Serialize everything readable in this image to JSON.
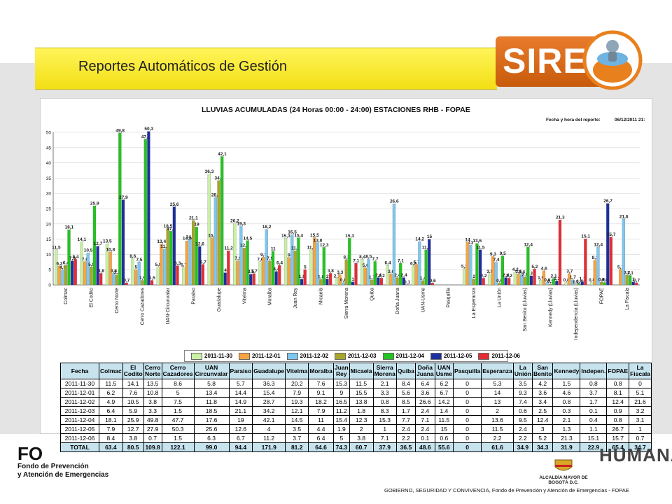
{
  "header": {
    "title": "Reportes Automáticos de Gestión",
    "brand": "SIRE"
  },
  "report": {
    "title": "LLUVIAS ACUMULADAS (24 Horas 00:00 - 24:00) ESTACIONES RHB - FOPAE",
    "date_label": "Fecha y hora del reporte:",
    "date_value": "06/12/2011 21:"
  },
  "chart_data": {
    "type": "bar",
    "ylim": [
      0,
      50
    ],
    "yticks": [
      0,
      5,
      10,
      15,
      20,
      25,
      30,
      35,
      40,
      45,
      50
    ],
    "grid": true,
    "legend_position": "bottom",
    "categories": [
      "Colmac",
      "El Codito",
      "Cerro Norte",
      "Cerro Cazadores",
      "UAN-Circunvalar",
      "Paraiso",
      "Guadalupe",
      "Vitelma",
      "Moralba",
      "Juan Rey",
      "Micaela",
      "Sierra Morena",
      "Quiba",
      "Doña Juana",
      "UAN-Usme",
      "Pasquilla",
      "La Esperanza",
      "La Unión",
      "San Benito (Lluvias)",
      "Kennedy (Lluvias)",
      "Independencia (Lluvias)",
      "FOPAE",
      "La Fiscala"
    ],
    "series": [
      {
        "name": "2011-11-30",
        "color": "#c9f0a4",
        "values": [
          11.5,
          14.1,
          13.5,
          8.6,
          5.8,
          5.7,
          36.3,
          20.2,
          7.6,
          15.3,
          11.5,
          2.1,
          8.4,
          6.4,
          6.2,
          0,
          5.3,
          3.5,
          4.2,
          1.5,
          0.8,
          0.8,
          0
        ]
      },
      {
        "name": "2011-12-01",
        "color": "#f7a440",
        "values": [
          6.2,
          7.6,
          10.8,
          5,
          13.4,
          14.4,
          15.4,
          7.9,
          9.1,
          9,
          15.5,
          3.3,
          5.6,
          3.6,
          6.7,
          0,
          14,
          9.3,
          3.6,
          4.6,
          3.7,
          8.1,
          5.1
        ]
      },
      {
        "name": "2011-12-02",
        "color": "#7ec7ef",
        "values": [
          4.9,
          10.5,
          3.8,
          7.5,
          11.8,
          14.9,
          28.7,
          19.3,
          18.2,
          16.5,
          13.8,
          0.8,
          8.5,
          26.6,
          14.2,
          0,
          13,
          7.4,
          3.4,
          0.8,
          1.7,
          12.4,
          21.6
        ]
      },
      {
        "name": "2011-12-03",
        "color": "#a7a629",
        "values": [
          6.4,
          5.9,
          3.3,
          1.5,
          18.5,
          21.1,
          34.2,
          12.1,
          7.9,
          11.2,
          1.8,
          8.3,
          1.7,
          2.4,
          1.4,
          0,
          2,
          0.6,
          2.5,
          0.3,
          0.1,
          0.9,
          3.2
        ]
      },
      {
        "name": "2011-12-04",
        "color": "#22c51f",
        "values": [
          18.1,
          25.9,
          49.8,
          47.7,
          17.6,
          19,
          42.1,
          14.5,
          11,
          15.4,
          12.3,
          15.3,
          7.7,
          7.1,
          11.5,
          0,
          13.6,
          9.5,
          12.4,
          2.1,
          0.4,
          0.8,
          3.1
        ]
      },
      {
        "name": "2011-12-05",
        "color": "#1c2fa0",
        "values": [
          7.9,
          12.7,
          27.9,
          50.3,
          25.6,
          12.6,
          4,
          3.5,
          4.4,
          1.9,
          2,
          1,
          2.4,
          2.4,
          15,
          0,
          11.5,
          2.4,
          3,
          1.3,
          1.1,
          26.7,
          1
        ]
      },
      {
        "name": "2011-12-06",
        "color": "#e52c35",
        "values": [
          8.4,
          3.8,
          0.7,
          1.5,
          6.3,
          6.7,
          11.2,
          3.7,
          6.4,
          5,
          3.8,
          7.1,
          2.2,
          0.1,
          0.6,
          0,
          2.2,
          2.2,
          5.2,
          21.3,
          15.1,
          15.7,
          0.7
        ]
      }
    ]
  },
  "table": {
    "headers": [
      "Fecha",
      "Colmac",
      "El Codito",
      "Cerro Norte",
      "Cerro Cazadores",
      "UAN Circunvalar",
      "Paraiso",
      "Guadalupe",
      "Vitelma",
      "Moralba",
      "Juan Rey",
      "Micaela",
      "Sierra Morena",
      "Quiba",
      "Doña Juana",
      "UAN Usme",
      "Pasquilla",
      "Esperanza",
      "La Unión",
      "San Benito",
      "Kennedy",
      "Indepen.",
      "FOPAE",
      "La Fiscala"
    ],
    "rows": [
      [
        "2011-11-30",
        "11.5",
        "14.1",
        "13.5",
        "8.6",
        "5.8",
        "5.7",
        "36.3",
        "20.2",
        "7.6",
        "15.3",
        "11.5",
        "2.1",
        "8.4",
        "6.4",
        "6.2",
        "0",
        "5.3",
        "3.5",
        "4.2",
        "1.5",
        "0.8",
        "0.8",
        "0"
      ],
      [
        "2011-12-01",
        "6.2",
        "7.6",
        "10.8",
        "5",
        "13.4",
        "14.4",
        "15.4",
        "7.9",
        "9.1",
        "9",
        "15.5",
        "3.3",
        "5.6",
        "3.6",
        "6.7",
        "0",
        "14",
        "9.3",
        "3.6",
        "4.6",
        "3.7",
        "8.1",
        "5.1"
      ],
      [
        "2011-12-02",
        "4.9",
        "10.5",
        "3.8",
        "7.5",
        "11.8",
        "14.9",
        "28.7",
        "19.3",
        "18.2",
        "16.5",
        "13.8",
        "0.8",
        "8.5",
        "26.6",
        "14.2",
        "0",
        "13",
        "7.4",
        "3.4",
        "0.8",
        "1.7",
        "12.4",
        "21.6"
      ],
      [
        "2011-12-03",
        "6.4",
        "5.9",
        "3.3",
        "1.5",
        "18.5",
        "21.1",
        "34.2",
        "12.1",
        "7.9",
        "11.2",
        "1.8",
        "8.3",
        "1.7",
        "2.4",
        "1.4",
        "0",
        "2",
        "0.6",
        "2.5",
        "0.3",
        "0.1",
        "0.9",
        "3.2"
      ],
      [
        "2011-12-04",
        "18.1",
        "25.9",
        "49.8",
        "47.7",
        "17.6",
        "19",
        "42.1",
        "14.5",
        "11",
        "15.4",
        "12.3",
        "15.3",
        "7.7",
        "7.1",
        "11.5",
        "0",
        "13.6",
        "9.5",
        "12.4",
        "2.1",
        "0.4",
        "0.8",
        "3.1"
      ],
      [
        "2011-12-05",
        "7.9",
        "12.7",
        "27.9",
        "50.3",
        "25.6",
        "12.6",
        "4",
        "3.5",
        "4.4",
        "1.9",
        "2",
        "1",
        "2.4",
        "2.4",
        "15",
        "0",
        "11.5",
        "2.4",
        "3",
        "1.3",
        "1.1",
        "26.7",
        "1"
      ],
      [
        "2011-12-06",
        "8.4",
        "3.8",
        "0.7",
        "1.5",
        "6.3",
        "6.7",
        "11.2",
        "3.7",
        "6.4",
        "5",
        "3.8",
        "7.1",
        "2.2",
        "0.1",
        "0.6",
        "0",
        "2.2",
        "2.2",
        "5.2",
        "21.3",
        "15.1",
        "15.7",
        "0.7"
      ]
    ],
    "total": [
      "TOTAL",
      "63.4",
      "80.5",
      "109.8",
      "122.1",
      "99.0",
      "94.4",
      "171.9",
      "81.2",
      "64.6",
      "74.3",
      "60.7",
      "37.9",
      "36.5",
      "48.6",
      "55.6",
      "0",
      "61.6",
      "34.9",
      "34.3",
      "31.9",
      "22.9",
      "65.4",
      "34.7"
    ]
  },
  "footer": {
    "fopae_short": "FO",
    "fopae_line1": "Fondo de Prevención",
    "fopae_line2": "y Atención de Emergencias",
    "alcaldia": "ALCALDÍA MAYOR DE BOGOTÁ D.C.",
    "bogota": "HUMANA",
    "caption": "GOBIERNO, SEGURIDAD Y CONVIVENCIA, Fondo de Prevención y Atención de Emergencias - FOPAE"
  }
}
